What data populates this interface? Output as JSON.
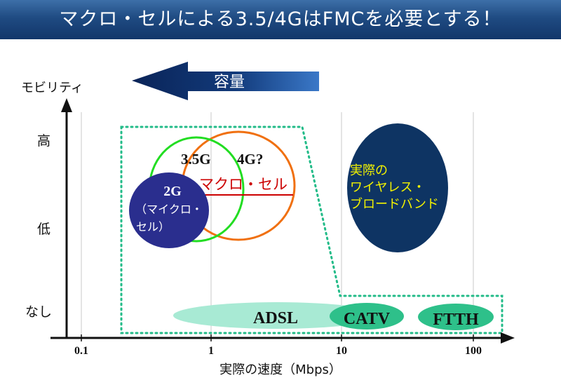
{
  "title": "マクロ・セルによる3.5/4GはFMCを必要とする！",
  "y_axis": {
    "label": "モビリティ",
    "ticks": [
      "高",
      "低",
      "なし"
    ]
  },
  "x_axis": {
    "label": "実際の速度（Mbps）",
    "ticks": [
      "0.1",
      "1",
      "10",
      "100"
    ]
  },
  "capacity_arrow": {
    "label": "容量"
  },
  "regions": {
    "g2": {
      "line1": "2G",
      "line2": "（マイクロ・",
      "line3": "セル）"
    },
    "g35": "3.5G",
    "g4": "4G?",
    "macro_cell": "マクロ・セル",
    "wireless": {
      "line1": "実際の",
      "line2": "ワイヤレス・",
      "line3": "ブロードバンド"
    },
    "adsl": "ADSL",
    "catv": "CATV",
    "ftth": "FTTH"
  },
  "colors": {
    "title_bg": "#1f4b82",
    "arrow": "#0f2f6a",
    "green_circle": "#22dd22",
    "orange_ellipse": "#f07010",
    "micro_cell": "#2a2e8e",
    "wireless_ellipse": "#0e3463",
    "wireless_text": "#f2f200",
    "adsl_fill": "#a8ead4",
    "catv_fill": "#2ec08a",
    "macro_text": "#cc0000",
    "dotted_border": "#22bb88"
  }
}
